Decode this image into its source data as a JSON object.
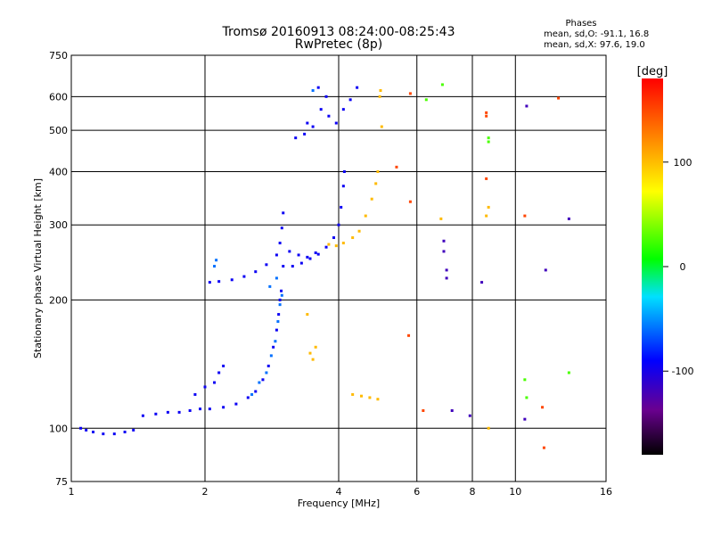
{
  "chart_data": {
    "type": "scatter",
    "title": "Tromsø 20160913 08:24:00-08:25:43",
    "subtitle": "RwPretec (8p)",
    "xlabel": "Frequency [MHz]",
    "ylabel": "Stationary phase Virtual Height [km]",
    "x_scale": "log",
    "y_scale": "log",
    "xlim": [
      1,
      16
    ],
    "ylim": [
      75,
      750
    ],
    "x_ticks": [
      1,
      2,
      4,
      6,
      8,
      10,
      16
    ],
    "x_tick_labels": [
      "1",
      "2",
      "4",
      "6",
      "8",
      "10",
      "16"
    ],
    "y_ticks": [
      75,
      100,
      200,
      300,
      400,
      500,
      600,
      750
    ],
    "y_tick_labels": [
      "75",
      "100",
      "200",
      "300",
      "400",
      "500",
      "600",
      "750"
    ],
    "grid": true,
    "colorbar": {
      "label": "[deg]",
      "range": [
        -180,
        180
      ],
      "ticks": [
        100,
        0,
        -100
      ],
      "tick_labels": [
        "100",
        "0",
        "-100"
      ]
    },
    "stats": {
      "header": "Phases",
      "o_line": "mean, sd,O: -91.1, 16.8",
      "x_line": "mean, sd,X:  97.6, 19.0"
    },
    "series": [
      {
        "phase": -95,
        "points": [
          [
            1.05,
            100
          ],
          [
            1.08,
            99
          ],
          [
            1.12,
            98
          ],
          [
            1.18,
            97
          ],
          [
            1.25,
            97
          ],
          [
            1.32,
            98
          ],
          [
            1.38,
            99
          ],
          [
            1.45,
            107
          ],
          [
            1.55,
            108
          ],
          [
            1.65,
            109
          ],
          [
            1.75,
            109
          ],
          [
            1.85,
            110
          ],
          [
            1.95,
            111
          ],
          [
            2.05,
            111
          ],
          [
            2.2,
            112
          ],
          [
            2.35,
            114
          ],
          [
            2.5,
            118
          ],
          [
            2.6,
            122
          ],
          [
            2.7,
            130
          ],
          [
            2.78,
            140
          ],
          [
            2.85,
            155
          ],
          [
            2.9,
            170
          ],
          [
            2.93,
            185
          ],
          [
            2.95,
            200
          ],
          [
            2.97,
            210
          ],
          [
            2.05,
            220
          ],
          [
            2.15,
            221
          ],
          [
            2.3,
            223
          ],
          [
            2.45,
            227
          ],
          [
            2.6,
            233
          ],
          [
            2.75,
            242
          ],
          [
            2.9,
            255
          ],
          [
            2.95,
            272
          ],
          [
            2.98,
            295
          ],
          [
            3.0,
            320
          ],
          [
            3.0,
            240
          ],
          [
            3.15,
            240
          ],
          [
            3.3,
            244
          ],
          [
            3.45,
            250
          ],
          [
            3.6,
            256
          ],
          [
            3.75,
            266
          ],
          [
            3.9,
            280
          ],
          [
            4.0,
            300
          ],
          [
            4.05,
            330
          ],
          [
            4.1,
            370
          ],
          [
            4.12,
            400
          ],
          [
            3.1,
            260
          ],
          [
            3.25,
            255
          ],
          [
            3.4,
            252
          ],
          [
            3.55,
            258
          ],
          [
            3.2,
            480
          ],
          [
            3.35,
            490
          ],
          [
            3.5,
            510
          ],
          [
            3.65,
            560
          ],
          [
            3.8,
            540
          ],
          [
            3.95,
            520
          ],
          [
            4.1,
            560
          ],
          [
            4.25,
            590
          ],
          [
            4.4,
            630
          ],
          [
            3.6,
            630
          ],
          [
            3.75,
            600
          ],
          [
            3.4,
            520
          ],
          [
            1.9,
            120
          ],
          [
            2.0,
            125
          ],
          [
            2.1,
            128
          ],
          [
            2.15,
            135
          ],
          [
            2.2,
            140
          ]
        ]
      },
      {
        "phase": -60,
        "points": [
          [
            2.55,
            120
          ],
          [
            2.65,
            128
          ],
          [
            2.75,
            135
          ],
          [
            2.82,
            148
          ],
          [
            2.88,
            160
          ],
          [
            2.92,
            178
          ],
          [
            2.95,
            195
          ],
          [
            2.98,
            205
          ],
          [
            2.9,
            225
          ],
          [
            2.8,
            215
          ],
          [
            2.1,
            240
          ],
          [
            2.12,
            248
          ],
          [
            3.5,
            620
          ]
        ]
      },
      {
        "phase": 100,
        "points": [
          [
            3.8,
            270
          ],
          [
            3.95,
            268
          ],
          [
            4.1,
            272
          ],
          [
            4.3,
            280
          ],
          [
            4.45,
            290
          ],
          [
            4.6,
            315
          ],
          [
            4.75,
            345
          ],
          [
            4.85,
            375
          ],
          [
            4.9,
            400
          ],
          [
            4.95,
            600
          ],
          [
            4.97,
            620
          ],
          [
            5.0,
            510
          ],
          [
            4.3,
            120
          ],
          [
            4.5,
            119
          ],
          [
            4.7,
            118
          ],
          [
            4.9,
            117
          ],
          [
            3.45,
            150
          ],
          [
            3.5,
            145
          ],
          [
            3.55,
            155
          ],
          [
            3.4,
            185
          ],
          [
            6.8,
            310
          ],
          [
            8.6,
            315
          ],
          [
            8.7,
            330
          ],
          [
            8.7,
            100
          ]
        ]
      },
      {
        "phase": 150,
        "points": [
          [
            5.8,
            610
          ],
          [
            5.8,
            340
          ],
          [
            5.75,
            165
          ],
          [
            6.2,
            110
          ],
          [
            8.6,
            550
          ],
          [
            8.6,
            540
          ],
          [
            8.6,
            385
          ],
          [
            10.5,
            315
          ],
          [
            11.5,
            112
          ],
          [
            11.6,
            90
          ],
          [
            12.5,
            595
          ],
          [
            5.4,
            410
          ]
        ]
      },
      {
        "phase": -120,
        "points": [
          [
            6.9,
            275
          ],
          [
            6.9,
            260
          ],
          [
            7.0,
            235
          ],
          [
            7.0,
            225
          ],
          [
            7.2,
            110
          ],
          [
            8.4,
            220
          ],
          [
            10.5,
            105
          ],
          [
            11.7,
            235
          ],
          [
            10.6,
            570
          ],
          [
            13.2,
            310
          ],
          [
            7.9,
            107
          ]
        ]
      },
      {
        "phase": 20,
        "points": [
          [
            6.85,
            640
          ],
          [
            6.3,
            590
          ],
          [
            8.7,
            480
          ],
          [
            8.7,
            470
          ],
          [
            10.5,
            130
          ],
          [
            13.2,
            135
          ],
          [
            10.6,
            118
          ]
        ]
      }
    ]
  }
}
